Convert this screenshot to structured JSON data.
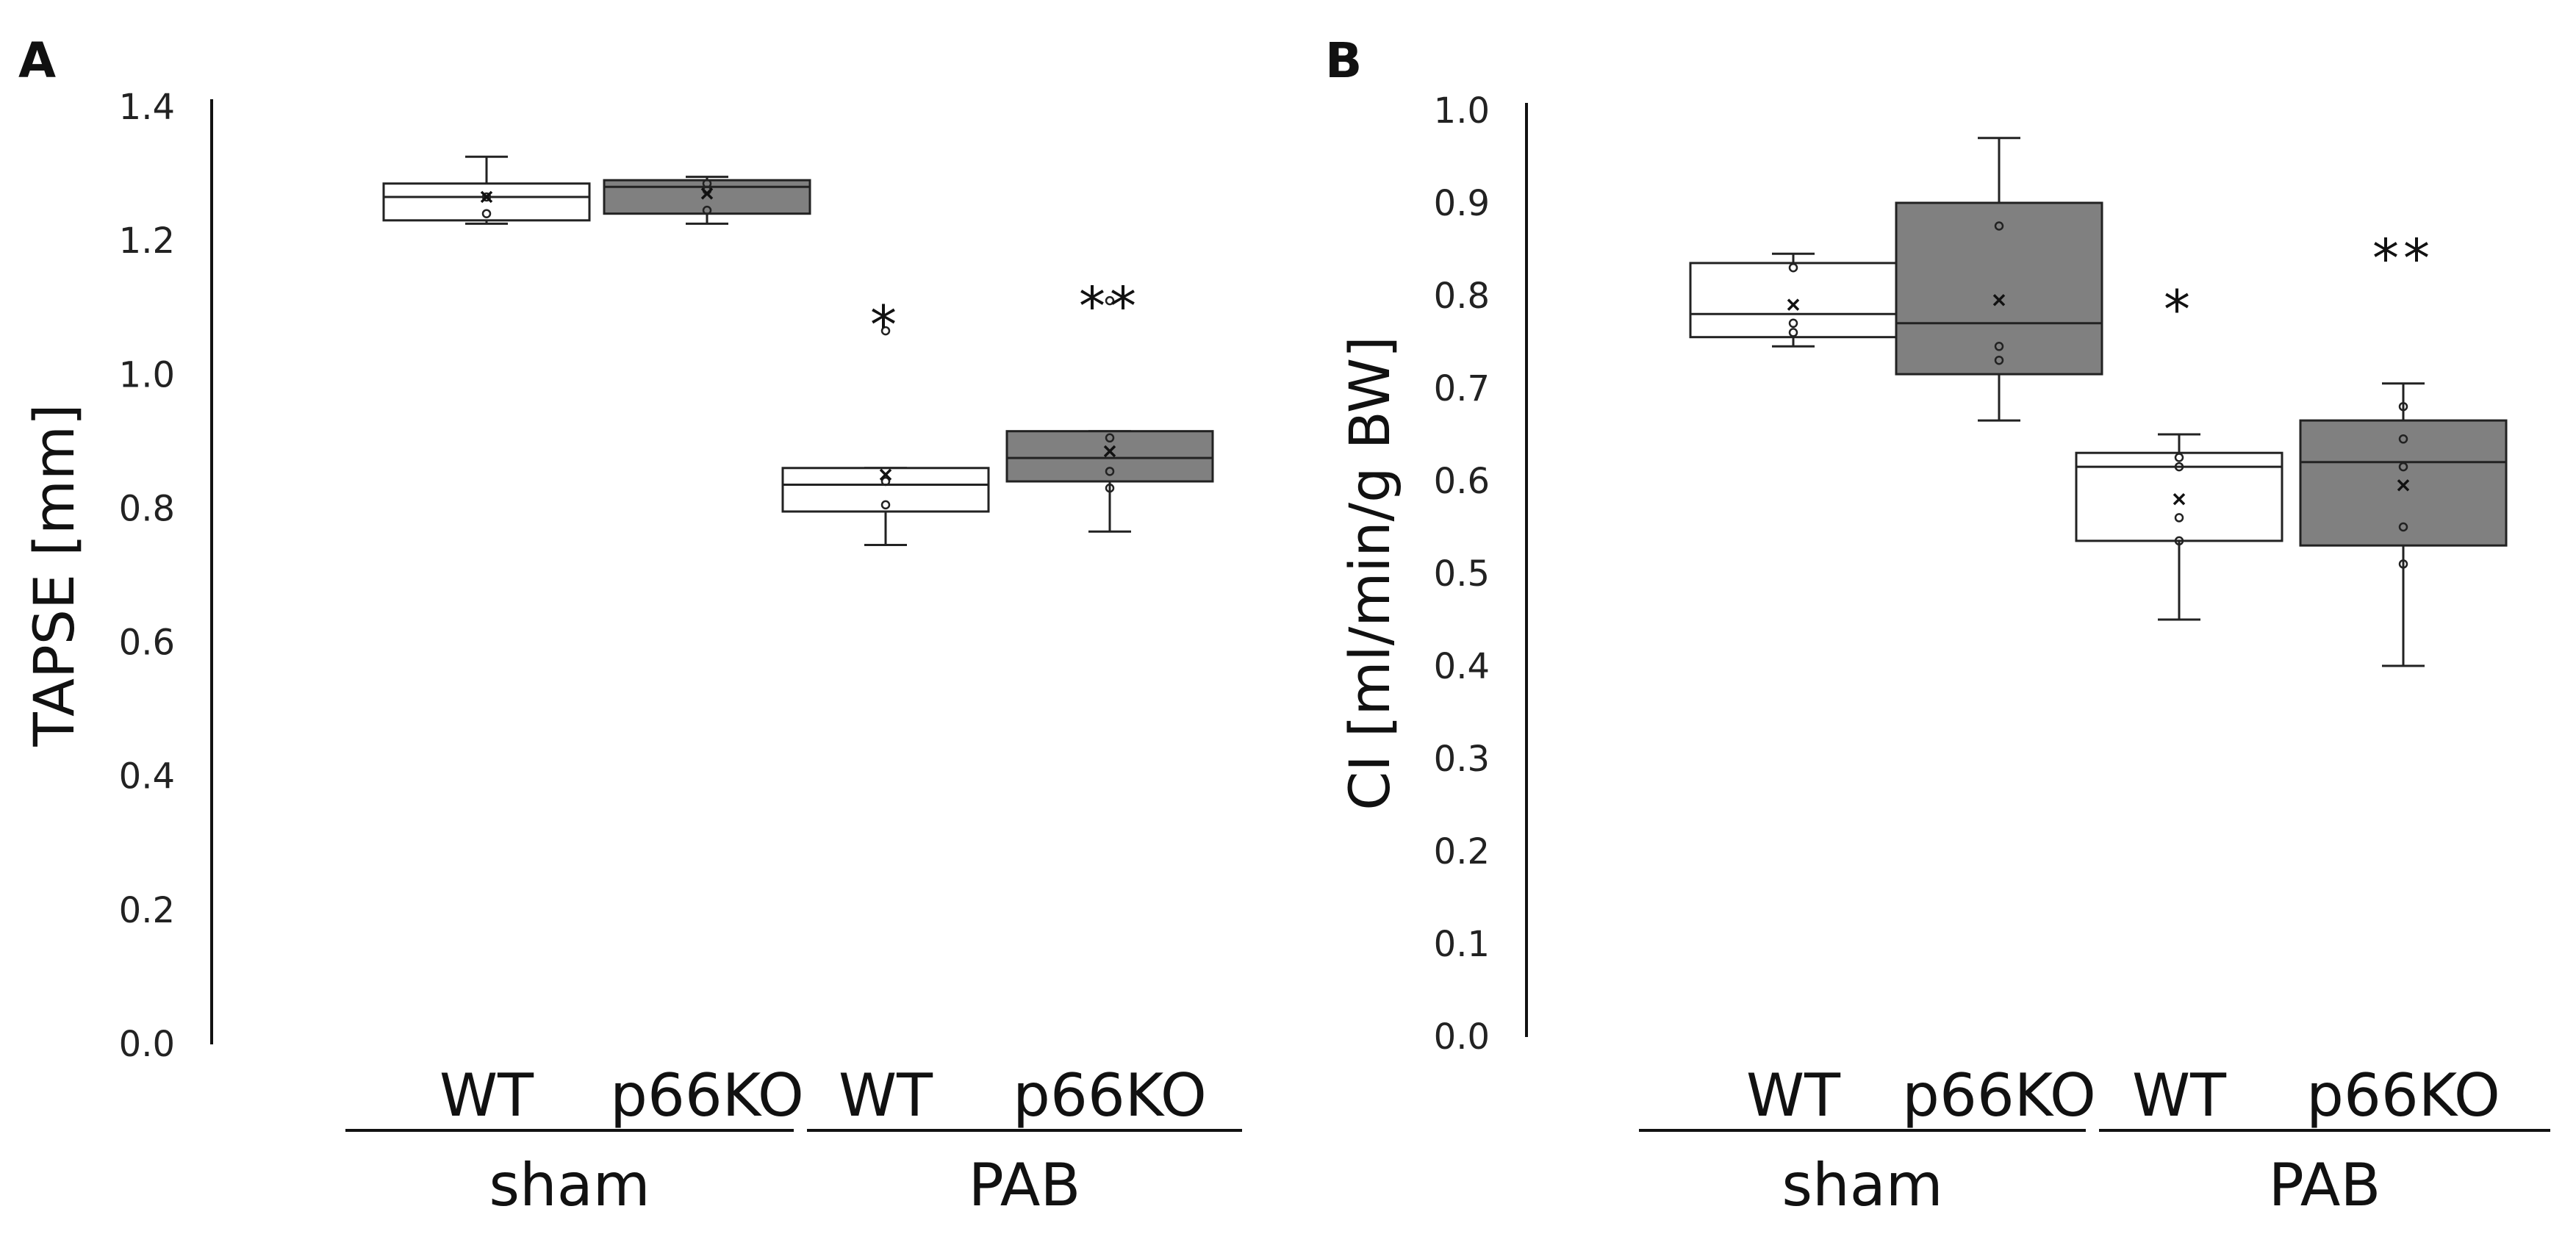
{
  "colors": {
    "wt_fill": "#ffffff",
    "ko_fill": "#808080",
    "stroke": "#222222",
    "point": "#222222"
  },
  "chart_data": [
    {
      "type": "box",
      "panel_label": "A",
      "ylabel": "TAPSE [mm]",
      "ylim": [
        0,
        1.4
      ],
      "yticks": [
        0.0,
        0.2,
        0.4,
        0.6,
        0.8,
        1.0,
        1.2,
        1.4
      ],
      "ytick_labels": [
        "0.0",
        "0.2",
        "0.4",
        "0.6",
        "0.8",
        "1.0",
        "1.2",
        "1.4"
      ],
      "grid": false,
      "groups": [
        {
          "label": "sham",
          "categories": [
            "WT",
            "p66KO"
          ]
        },
        {
          "label": "PAB",
          "categories": [
            "WT",
            "p66KO"
          ]
        }
      ],
      "boxes": [
        {
          "category": "WT",
          "group": "sham",
          "fill": "#ffffff",
          "whisker_low": 1.225,
          "q1": 1.23,
          "median": 1.265,
          "q3": 1.285,
          "whisker_high": 1.325,
          "mean": 1.265,
          "points": [
            1.24,
            1.265
          ],
          "significance": ""
        },
        {
          "category": "p66KO",
          "group": "sham",
          "fill": "#808080",
          "whisker_low": 1.225,
          "q1": 1.24,
          "median": 1.28,
          "q3": 1.29,
          "whisker_high": 1.295,
          "mean": 1.27,
          "points": [
            1.245,
            1.275,
            1.285
          ],
          "significance": ""
        },
        {
          "category": "WT",
          "group": "PAB",
          "fill": "#ffffff",
          "whisker_low": 0.745,
          "q1": 0.795,
          "median": 0.835,
          "q3": 0.86,
          "whisker_high": 0.86,
          "mean": 0.85,
          "points": [
            0.805,
            0.84,
            1.065
          ],
          "significance": "*"
        },
        {
          "category": "p66KO",
          "group": "PAB",
          "fill": "#808080",
          "whisker_low": 0.765,
          "q1": 0.84,
          "median": 0.875,
          "q3": 0.915,
          "whisker_high": 0.915,
          "mean": 0.885,
          "points": [
            0.83,
            0.855,
            0.905,
            1.11
          ],
          "significance": "**"
        }
      ]
    },
    {
      "type": "box",
      "panel_label": "B",
      "ylabel": "CI [ml/min/g BW]",
      "ylim": [
        0,
        1.0
      ],
      "yticks": [
        0.0,
        0.1,
        0.2,
        0.3,
        0.4,
        0.5,
        0.6,
        0.7,
        0.8,
        0.9,
        1.0
      ],
      "ytick_labels": [
        "0.0",
        "0.1",
        "0.2",
        "0.3",
        "0.4",
        "0.5",
        "0.6",
        "0.7",
        "0.8",
        "0.9",
        "1.0"
      ],
      "grid": false,
      "groups": [
        {
          "label": "sham",
          "categories": [
            "WT",
            "p66KO"
          ]
        },
        {
          "label": "PAB",
          "categories": [
            "WT",
            "p66KO"
          ]
        }
      ],
      "boxes": [
        {
          "category": "WT",
          "group": "sham",
          "fill": "#ffffff",
          "whisker_low": 0.745,
          "q1": 0.755,
          "median": 0.78,
          "q3": 0.835,
          "whisker_high": 0.845,
          "mean": 0.79,
          "points": [
            0.76,
            0.77,
            0.83
          ],
          "significance": ""
        },
        {
          "category": "p66KO",
          "group": "sham",
          "fill": "#808080",
          "whisker_low": 0.665,
          "q1": 0.715,
          "median": 0.77,
          "q3": 0.9,
          "whisker_high": 0.97,
          "mean": 0.795,
          "points": [
            0.73,
            0.745,
            0.875
          ],
          "significance": ""
        },
        {
          "category": "WT",
          "group": "PAB",
          "fill": "#ffffff",
          "whisker_low": 0.45,
          "q1": 0.535,
          "median": 0.615,
          "q3": 0.63,
          "whisker_high": 0.65,
          "mean": 0.58,
          "points": [
            0.535,
            0.56,
            0.615,
            0.625
          ],
          "significance": "*"
        },
        {
          "category": "p66KO",
          "group": "PAB",
          "fill": "#808080",
          "whisker_low": 0.4,
          "q1": 0.53,
          "median": 0.62,
          "q3": 0.665,
          "whisker_high": 0.705,
          "mean": 0.595,
          "points": [
            0.51,
            0.55,
            0.615,
            0.645,
            0.68
          ],
          "significance": "**"
        }
      ]
    }
  ]
}
